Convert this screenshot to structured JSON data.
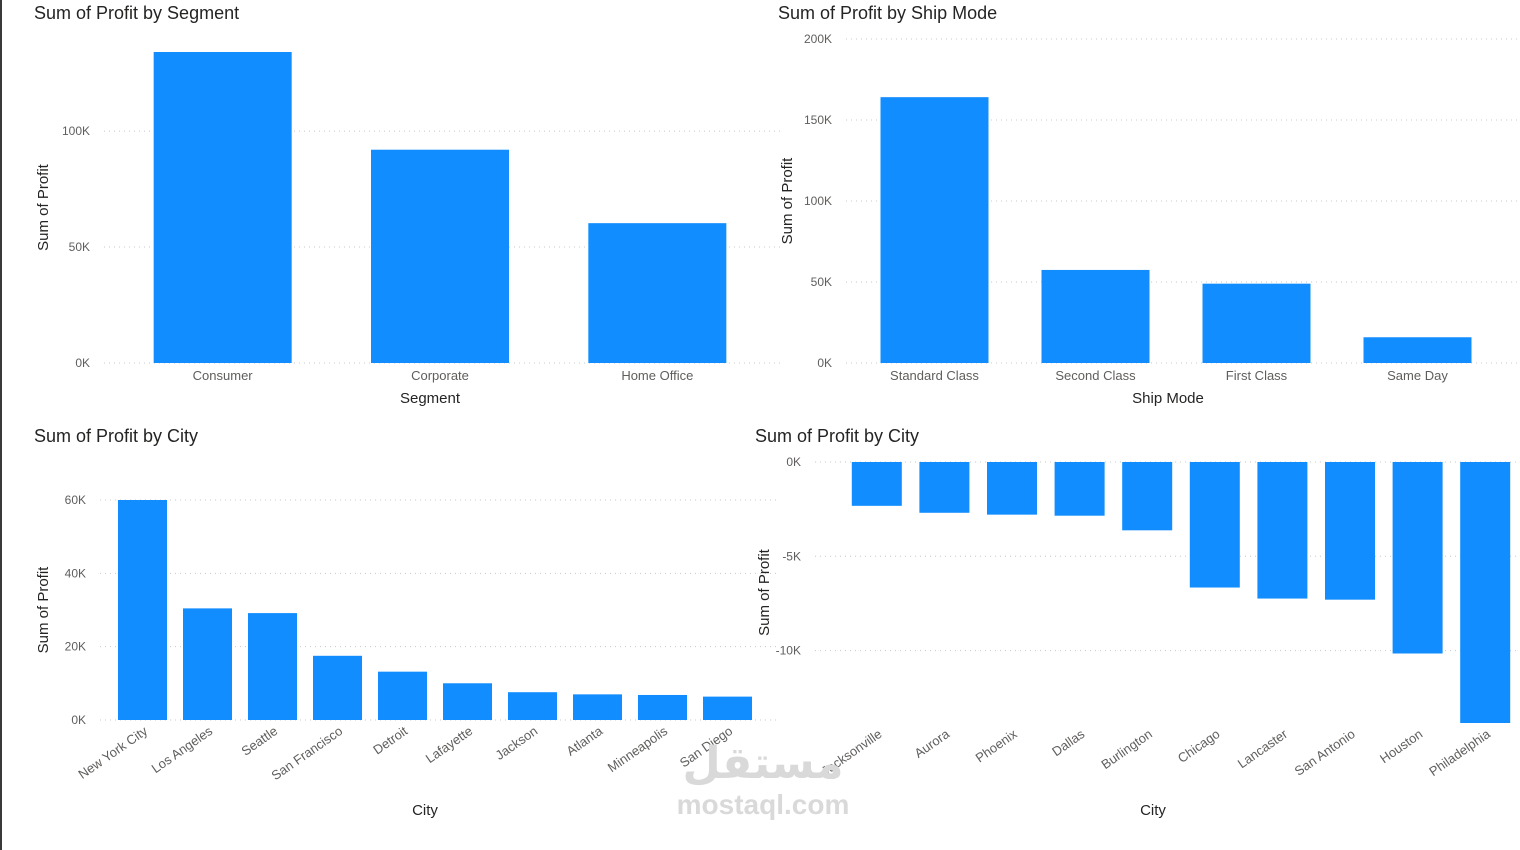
{
  "charts": [
    {
      "id": "segment",
      "title": "Sum of Profit by Segment",
      "chart_data": {
        "type": "bar",
        "title": "Sum of Profit by Segment",
        "xlabel": "Segment",
        "ylabel": "Sum of Profit",
        "categories": [
          "Consumer",
          "Corporate",
          "Home Office"
        ],
        "values": [
          134119,
          91979,
          60299
        ],
        "ylim": [
          0,
          134119
        ],
        "yticks": [
          0,
          50000,
          100000
        ],
        "ytick_labels": [
          "0K",
          "50K",
          "100K"
        ],
        "grid": true,
        "rotate_labels": false
      }
    },
    {
      "id": "shipmode",
      "title": "Sum of Profit by Ship Mode",
      "chart_data": {
        "type": "bar",
        "title": "Sum of Profit by Ship Mode",
        "xlabel": "Ship Mode",
        "ylabel": "Sum of Profit",
        "categories": [
          "Standard Class",
          "Second Class",
          "First Class",
          "Same Day"
        ],
        "values": [
          164089,
          57447,
          48970,
          15892
        ],
        "ylim": [
          0,
          200000
        ],
        "yticks": [
          0,
          50000,
          100000,
          150000,
          200000
        ],
        "ytick_labels": [
          "0K",
          "50K",
          "100K",
          "150K",
          "200K"
        ],
        "grid": true,
        "rotate_labels": false
      }
    },
    {
      "id": "city-top",
      "title": "Sum of Profit by City",
      "chart_data": {
        "type": "bar",
        "title": "Sum of Profit by City",
        "xlabel": "City",
        "ylabel": "Sum of Profit",
        "categories": [
          "New York City",
          "Los Angeles",
          "Seattle",
          "San Francisco",
          "Detroit",
          "Lafayette",
          "Jackson",
          "Atlanta",
          "Minneapolis",
          "San Diego"
        ],
        "values": [
          62037,
          30441,
          29156,
          17508,
          13181,
          10018,
          7582,
          6994,
          6825,
          6377
        ],
        "ylim": [
          0,
          60000
        ],
        "yticks": [
          0,
          20000,
          40000,
          60000
        ],
        "ytick_labels": [
          "0K",
          "20K",
          "40K",
          "60K"
        ],
        "grid": true,
        "rotate_labels": true
      }
    },
    {
      "id": "city-bottom",
      "title": "Sum of Profit by City",
      "chart_data": {
        "type": "bar",
        "title": "Sum of Profit by City",
        "xlabel": "City",
        "ylabel": "Sum of Profit",
        "categories": [
          "Jacksonville",
          "Aurora",
          "Phoenix",
          "Dallas",
          "Burlington",
          "Chicago",
          "Lancaster",
          "San Antonio",
          "Houston",
          "Philadelphia"
        ],
        "values": [
          -2324,
          -2692,
          -2791,
          -2847,
          -3622,
          -6655,
          -7240,
          -7299,
          -10153,
          -13838
        ],
        "ylim": [
          -13838,
          0
        ],
        "yticks": [
          0,
          -5000,
          -10000
        ],
        "ytick_labels": [
          "0K",
          "-5K",
          "-10K"
        ],
        "grid": true,
        "rotate_labels": true
      }
    }
  ],
  "watermark": {
    "arabic": "مستقل",
    "latin": "mostaql.com"
  }
}
